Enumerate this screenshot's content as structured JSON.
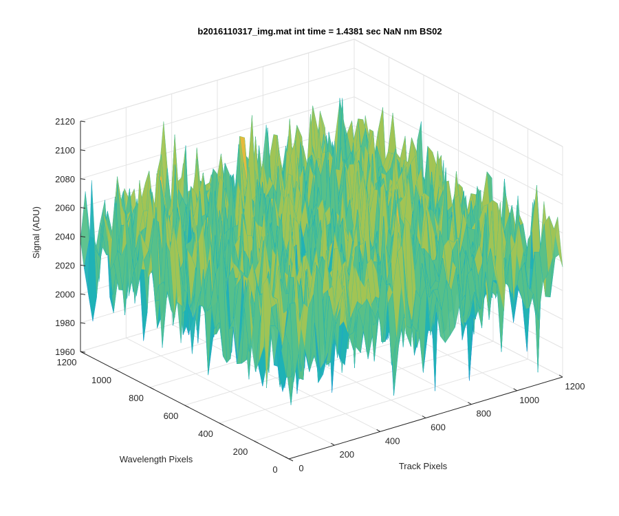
{
  "chart_data": {
    "type": "surface",
    "title": "b2016110317_img.mat int time = 1.4381 sec  NaN nm BS02",
    "xlabel": "Track Pixels",
    "ylabel": "Wavelength Pixels",
    "zlabel": "Signal (ADU)",
    "xlim": [
      0,
      1200
    ],
    "ylim": [
      0,
      1200
    ],
    "zlim": [
      1960,
      2120
    ],
    "xticks": [
      "0",
      "200",
      "400",
      "600",
      "800",
      "1000",
      "1200"
    ],
    "yticks": [
      "0",
      "200",
      "400",
      "600",
      "800",
      "1000",
      "1200"
    ],
    "zticks": [
      "1960",
      "1980",
      "2000",
      "2020",
      "2040",
      "2060",
      "2080",
      "2100",
      "2120"
    ],
    "grid": true,
    "colormap": "parula",
    "colors": [
      "#0072bd",
      "#1f9cd6",
      "#1fb2b5",
      "#56c08a",
      "#a3c453",
      "#e7ba3c",
      "#f5d72a"
    ],
    "surface": {
      "x_range": [
        0,
        1200
      ],
      "y_range": [
        0,
        1200
      ],
      "signal_min": 1960,
      "signal_max": 2110,
      "signal_mean": 2040
    }
  }
}
